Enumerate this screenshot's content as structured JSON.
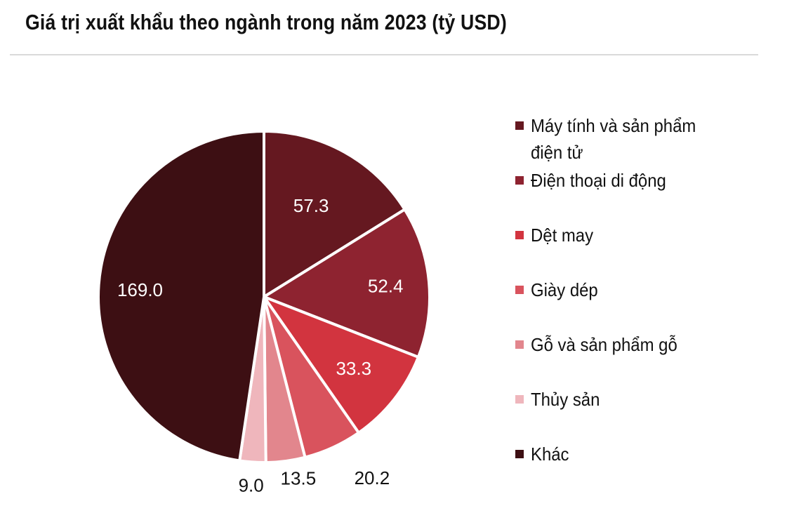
{
  "chart_data": {
    "type": "pie",
    "title": "Giá trị xuất khẩu theo ngành trong năm 2023 (tỷ USD)",
    "categories": [
      "Máy tính và sản phẩm điện tử",
      "Điện thoại di động",
      "Dệt may",
      "Giày dép",
      "Gỗ và sản phẩm gỗ",
      "Thủy sản",
      "Khác"
    ],
    "values": [
      57.3,
      52.4,
      33.3,
      20.2,
      13.5,
      9.0,
      169.0
    ],
    "value_labels": [
      "57.3",
      "52.4",
      "33.3",
      "20.2",
      "13.5",
      "9.0",
      "169.0"
    ],
    "colors": [
      "#651820",
      "#8e2330",
      "#d2343f",
      "#d9535d",
      "#e2868d",
      "#efb6bc",
      "#3d0f13"
    ],
    "label_colors": [
      "#ffffff",
      "#ffffff",
      "#ffffff",
      "#111111",
      "#111111",
      "#111111",
      "#ffffff"
    ],
    "legend_position": "right"
  }
}
